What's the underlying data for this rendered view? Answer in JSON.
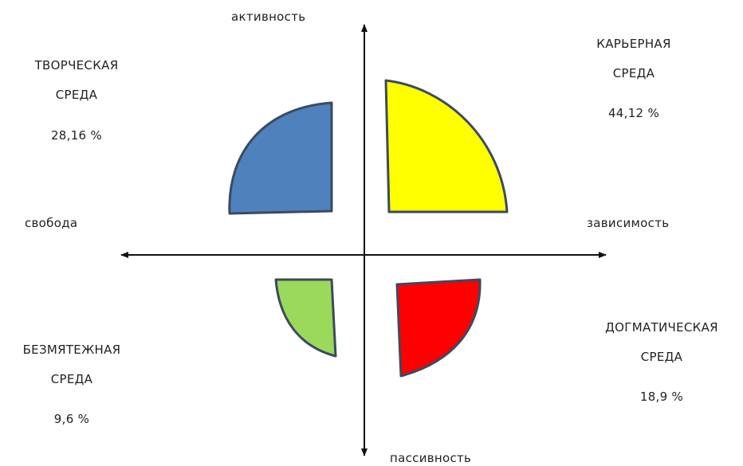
{
  "axes": {
    "top": "активность",
    "bottom": "пассивность",
    "left": "свобода",
    "right": "зависимость"
  },
  "quadrants": [
    {
      "line1": "ТВОРЧЕСКАЯ",
      "line2": "СРЕДА",
      "percent": "28,16 %",
      "value": 28.16,
      "color": "#4f81bd"
    },
    {
      "line1": "КАРЬЕРНАЯ",
      "line2": "СРЕДА",
      "percent": "44,12 %",
      "value": 44.12,
      "color": "#ffff00"
    },
    {
      "line1": "БЕЗМЯТЕЖНАЯ",
      "line2": "СРЕДА",
      "percent": "9,6 %",
      "value": 9.6,
      "color": "#9bd95a"
    },
    {
      "line1": "ДОГМАТИЧЕСКАЯ",
      "line2": "СРЕДА",
      "percent": "18,9 %",
      "value": 18.9,
      "color": "#ff0000"
    }
  ],
  "colors": {
    "axis": "#111111",
    "shape_outline": "#3b4a60"
  }
}
